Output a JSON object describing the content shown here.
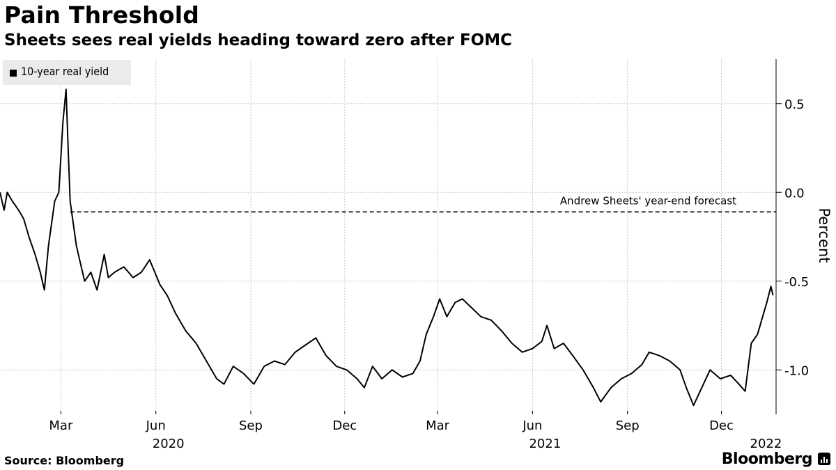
{
  "header": {
    "title": "Pain Threshold",
    "subtitle": "Sheets sees real yields heading toward zero after FOMC"
  },
  "footer": {
    "source": "Source: Bloomberg",
    "brand": "Bloomberg"
  },
  "chart_data": {
    "type": "line",
    "title": "Pain Threshold",
    "subtitle": "Sheets sees real yields heading toward zero after FOMC",
    "ylabel": "Percent",
    "ylim": [
      -1.25,
      0.75
    ],
    "yticks": [
      0.5,
      0.0,
      -0.5,
      -1.0
    ],
    "ytick_labels": [
      "0.5",
      "0.0",
      "-0.5",
      "-1.0"
    ],
    "xlim": [
      "2020-01-02",
      "2022-01-23"
    ],
    "xticks": [
      {
        "date": "2020-03-01",
        "label": "Mar"
      },
      {
        "date": "2020-06-01",
        "label": "Jun"
      },
      {
        "date": "2020-09-01",
        "label": "Sep"
      },
      {
        "date": "2020-12-01",
        "label": "Dec"
      },
      {
        "date": "2021-03-01",
        "label": "Mar"
      },
      {
        "date": "2021-06-01",
        "label": "Jun"
      },
      {
        "date": "2021-09-01",
        "label": "Sep"
      },
      {
        "date": "2021-12-01",
        "label": "Dec"
      }
    ],
    "year_labels": [
      {
        "date": "2020-06-01",
        "label": "2020"
      },
      {
        "date": "2021-06-01",
        "label": "2021"
      },
      {
        "date": "2022-01-01",
        "label": "2022"
      }
    ],
    "grid": true,
    "legend_position": "top-left",
    "series": [
      {
        "name": "10-year real yield",
        "color": "#000000",
        "points": [
          [
            "2020-01-02",
            0.0
          ],
          [
            "2020-01-06",
            -0.1
          ],
          [
            "2020-01-09",
            0.0
          ],
          [
            "2020-01-14",
            -0.05
          ],
          [
            "2020-01-20",
            -0.1
          ],
          [
            "2020-01-25",
            -0.15
          ],
          [
            "2020-01-30",
            -0.25
          ],
          [
            "2020-02-05",
            -0.35
          ],
          [
            "2020-02-10",
            -0.45
          ],
          [
            "2020-02-14",
            -0.55
          ],
          [
            "2020-02-18",
            -0.3
          ],
          [
            "2020-02-24",
            -0.05
          ],
          [
            "2020-02-28",
            0.0
          ],
          [
            "2020-03-03",
            0.4
          ],
          [
            "2020-03-06",
            0.58
          ],
          [
            "2020-03-08",
            0.25
          ],
          [
            "2020-03-10",
            -0.05
          ],
          [
            "2020-03-16",
            -0.3
          ],
          [
            "2020-03-20",
            -0.4
          ],
          [
            "2020-03-24",
            -0.5
          ],
          [
            "2020-03-30",
            -0.45
          ],
          [
            "2020-04-05",
            -0.55
          ],
          [
            "2020-04-12",
            -0.35
          ],
          [
            "2020-04-16",
            -0.48
          ],
          [
            "2020-04-22",
            -0.45
          ],
          [
            "2020-05-01",
            -0.42
          ],
          [
            "2020-05-10",
            -0.48
          ],
          [
            "2020-05-18",
            -0.45
          ],
          [
            "2020-05-26",
            -0.38
          ],
          [
            "2020-06-05",
            -0.52
          ],
          [
            "2020-06-12",
            -0.58
          ],
          [
            "2020-06-20",
            -0.68
          ],
          [
            "2020-06-30",
            -0.78
          ],
          [
            "2020-07-10",
            -0.85
          ],
          [
            "2020-07-20",
            -0.95
          ],
          [
            "2020-07-30",
            -1.05
          ],
          [
            "2020-08-06",
            -1.08
          ],
          [
            "2020-08-15",
            -0.98
          ],
          [
            "2020-08-25",
            -1.02
          ],
          [
            "2020-09-04",
            -1.08
          ],
          [
            "2020-09-14",
            -0.98
          ],
          [
            "2020-09-24",
            -0.95
          ],
          [
            "2020-10-04",
            -0.97
          ],
          [
            "2020-10-14",
            -0.9
          ],
          [
            "2020-10-24",
            -0.86
          ],
          [
            "2020-11-03",
            -0.82
          ],
          [
            "2020-11-13",
            -0.92
          ],
          [
            "2020-11-23",
            -0.98
          ],
          [
            "2020-12-03",
            -1.0
          ],
          [
            "2020-12-13",
            -1.05
          ],
          [
            "2020-12-20",
            -1.1
          ],
          [
            "2020-12-28",
            -0.98
          ],
          [
            "2021-01-06",
            -1.05
          ],
          [
            "2021-01-16",
            -1.0
          ],
          [
            "2021-01-26",
            -1.04
          ],
          [
            "2021-02-05",
            -1.02
          ],
          [
            "2021-02-12",
            -0.95
          ],
          [
            "2021-02-18",
            -0.8
          ],
          [
            "2021-02-25",
            -0.7
          ],
          [
            "2021-03-03",
            -0.6
          ],
          [
            "2021-03-10",
            -0.7
          ],
          [
            "2021-03-18",
            -0.62
          ],
          [
            "2021-03-25",
            -0.6
          ],
          [
            "2021-04-03",
            -0.65
          ],
          [
            "2021-04-12",
            -0.7
          ],
          [
            "2021-04-22",
            -0.72
          ],
          [
            "2021-05-02",
            -0.78
          ],
          [
            "2021-05-12",
            -0.85
          ],
          [
            "2021-05-22",
            -0.9
          ],
          [
            "2021-06-01",
            -0.88
          ],
          [
            "2021-06-10",
            -0.84
          ],
          [
            "2021-06-15",
            -0.75
          ],
          [
            "2021-06-22",
            -0.88
          ],
          [
            "2021-07-01",
            -0.85
          ],
          [
            "2021-07-10",
            -0.92
          ],
          [
            "2021-07-20",
            -1.0
          ],
          [
            "2021-07-30",
            -1.1
          ],
          [
            "2021-08-06",
            -1.18
          ],
          [
            "2021-08-16",
            -1.1
          ],
          [
            "2021-08-26",
            -1.05
          ],
          [
            "2021-09-05",
            -1.02
          ],
          [
            "2021-09-15",
            -0.97
          ],
          [
            "2021-09-22",
            -0.9
          ],
          [
            "2021-10-02",
            -0.92
          ],
          [
            "2021-10-12",
            -0.95
          ],
          [
            "2021-10-22",
            -1.0
          ],
          [
            "2021-10-28",
            -1.1
          ],
          [
            "2021-11-04",
            -1.2
          ],
          [
            "2021-11-12",
            -1.1
          ],
          [
            "2021-11-20",
            -1.0
          ],
          [
            "2021-11-30",
            -1.05
          ],
          [
            "2021-12-10",
            -1.03
          ],
          [
            "2021-12-18",
            -1.08
          ],
          [
            "2021-12-24",
            -1.12
          ],
          [
            "2021-12-30",
            -0.85
          ],
          [
            "2022-01-05",
            -0.8
          ],
          [
            "2022-01-10",
            -0.7
          ],
          [
            "2022-01-14",
            -0.62
          ],
          [
            "2022-01-18",
            -0.53
          ],
          [
            "2022-01-20",
            -0.58
          ]
        ]
      }
    ],
    "reference_lines": [
      {
        "label": "Andrew Sheets' year-end forecast",
        "y": -0.11,
        "style": "dashed",
        "x_from": "2020-03-10"
      }
    ]
  }
}
